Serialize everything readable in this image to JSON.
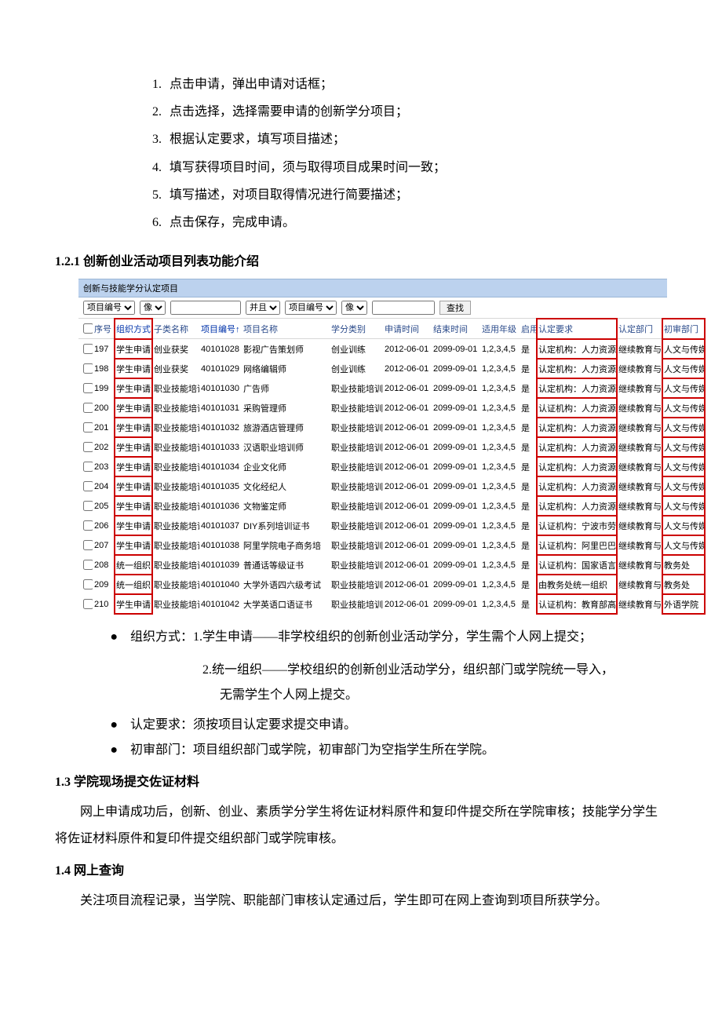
{
  "steps": [
    "点击申请，弹出申请对话框；",
    "点击选择，选择需要申请的创新学分项目；",
    "根据认定要求，填写项目描述；",
    "填写获得项目时间，须与取得项目成果时间一致；",
    "填写描述，对项目取得情况进行简要描述；",
    "点击保存，完成申请。"
  ],
  "sec121": "1.2.1  创新创业活动项目列表功能介绍",
  "table": {
    "title": "创新与技能学分认定项目",
    "filter": {
      "select1": "项目编号",
      "op1": "像",
      "logic": "并且",
      "select2": "项目编号",
      "op2": "像",
      "btn": "查找"
    },
    "cols": [
      "",
      "序号",
      "组织方式",
      "子类名称",
      "项目编号↑",
      "项目名称",
      "学分类别",
      "申请时间",
      "结束时间",
      "适用年级",
      "启用",
      "认定要求",
      "认定部门",
      "初审部门"
    ],
    "rows": [
      [
        "197",
        "学生申请",
        "创业获奖",
        "40101028",
        "影视广告策划师",
        "创业训练",
        "2012-06-01",
        "2099-09-01",
        "1,2,3,4,5",
        "是",
        "认定机构：人力资源",
        "继续教育与培",
        "人文与传媒学"
      ],
      [
        "198",
        "学生申请",
        "创业获奖",
        "40101029",
        "网络编辑师",
        "创业训练",
        "2012-06-01",
        "2099-09-01",
        "1,2,3,4,5",
        "是",
        "认定机构：人力资源",
        "继续教育与培",
        "人文与传媒学"
      ],
      [
        "199",
        "学生申请",
        "职业技能培训",
        "40101030",
        "广告师",
        "职业技能培训",
        "2012-06-01",
        "2099-09-01",
        "1,2,3,4,5",
        "是",
        "认定机构：人力资源",
        "继续教育与培",
        "人文与传媒学"
      ],
      [
        "200",
        "学生申请",
        "职业技能培训",
        "40101031",
        "采购管理师",
        "职业技能培训",
        "2012-06-01",
        "2099-09-01",
        "1,2,3,4,5",
        "是",
        "认证机构：人力资源",
        "继续教育与培",
        "人文与传媒学"
      ],
      [
        "201",
        "学生申请",
        "职业技能培训",
        "40101032",
        "旅游酒店管理师",
        "职业技能培训",
        "2012-06-01",
        "2099-09-01",
        "1,2,3,4,5",
        "是",
        "认定机构：人力资源",
        "继续教育与培",
        "人文与传媒学"
      ],
      [
        "202",
        "学生申请",
        "职业技能培训",
        "40101033",
        "汉语职业培训师",
        "职业技能培训",
        "2012-06-01",
        "2099-09-01",
        "1,2,3,4,5",
        "是",
        "认定机构：人力资源",
        "继续教育与培",
        "人文与传媒学"
      ],
      [
        "203",
        "学生申请",
        "职业技能培训",
        "40101034",
        "企业文化师",
        "职业技能培训",
        "2012-06-01",
        "2099-09-01",
        "1,2,3,4,5",
        "是",
        "认定机构：人力资源",
        "继续教育与培",
        "人文与传媒学"
      ],
      [
        "204",
        "学生申请",
        "职业技能培训",
        "40101035",
        "文化经纪人",
        "职业技能培训",
        "2012-06-01",
        "2099-09-01",
        "1,2,3,4,5",
        "是",
        "认定机构：人力资源",
        "继续教育与培",
        "人文与传媒学"
      ],
      [
        "205",
        "学生申请",
        "职业技能培训",
        "40101036",
        "文物鉴定师",
        "职业技能培训",
        "2012-06-01",
        "2099-09-01",
        "1,2,3,4,5",
        "是",
        "认定机构：人力资源",
        "继续教育与培",
        "人文与传媒学"
      ],
      [
        "206",
        "学生申请",
        "职业技能培训",
        "40101037",
        "DIY系列培训证书",
        "职业技能培训",
        "2012-06-01",
        "2099-09-01",
        "1,2,3,4,5",
        "是",
        "认证机构：宁波市劳",
        "继续教育与培",
        "人文与传媒学"
      ],
      [
        "207",
        "学生申请",
        "职业技能培训",
        "40101038",
        "阿里学院电子商务培",
        "职业技能培训",
        "2012-06-01",
        "2099-09-01",
        "1,2,3,4,5",
        "是",
        "认证机构：阿里巴巴",
        "继续教育与培",
        "人文与传媒学"
      ],
      [
        "208",
        "统一组织",
        "职业技能培训",
        "40101039",
        "普通话等级证书",
        "职业技能培训",
        "2012-06-01",
        "2099-09-01",
        "1,2,3,4,5",
        "是",
        "认证机构：国家语言",
        "继续教育与培",
        "教务处"
      ],
      [
        "209",
        "统一组织",
        "职业技能培训",
        "40101040",
        "大学外语四六级考试",
        "职业技能培训",
        "2012-06-01",
        "2099-09-01",
        "1,2,3,4,5",
        "是",
        "由教务处统一组织",
        "继续教育与培",
        "教务处"
      ],
      [
        "210",
        "学生申请",
        "职业技能培训",
        "40101042",
        "大学英语口语证书",
        "职业技能培训",
        "2012-06-01",
        "2099-09-01",
        "1,2,3,4,5",
        "是",
        "认证机构：教育部高",
        "继续教育与培",
        "外语学院"
      ]
    ]
  },
  "bullets": {
    "b1a": "组织方式：1.学生申请——非学校组织的创新创业活动学分，学生需个人网上提交；",
    "b1b": "2.统一组织——学校组织的创新创业活动学分，组织部门或学院统一导入，",
    "b1c": "无需学生个人网上提交。",
    "b2": "认定要求：须按项目认定要求提交申请。",
    "b3": "初审部门：项目组织部门或学院，初审部门为空指学生所在学院。"
  },
  "sec13": "1.3  学院现场提交佐证材料",
  "p13": "网上申请成功后，创新、创业、素质学分学生将佐证材料原件和复印件提交所在学院审核；技能学分学生将佐证材料原件和复印件提交组织部门或学院审核。",
  "sec14": "1.4  网上查询",
  "p14": "关注项目流程记录，当学院、职能部门审核认定通过后，学生即可在网上查询到项目所获学分。"
}
